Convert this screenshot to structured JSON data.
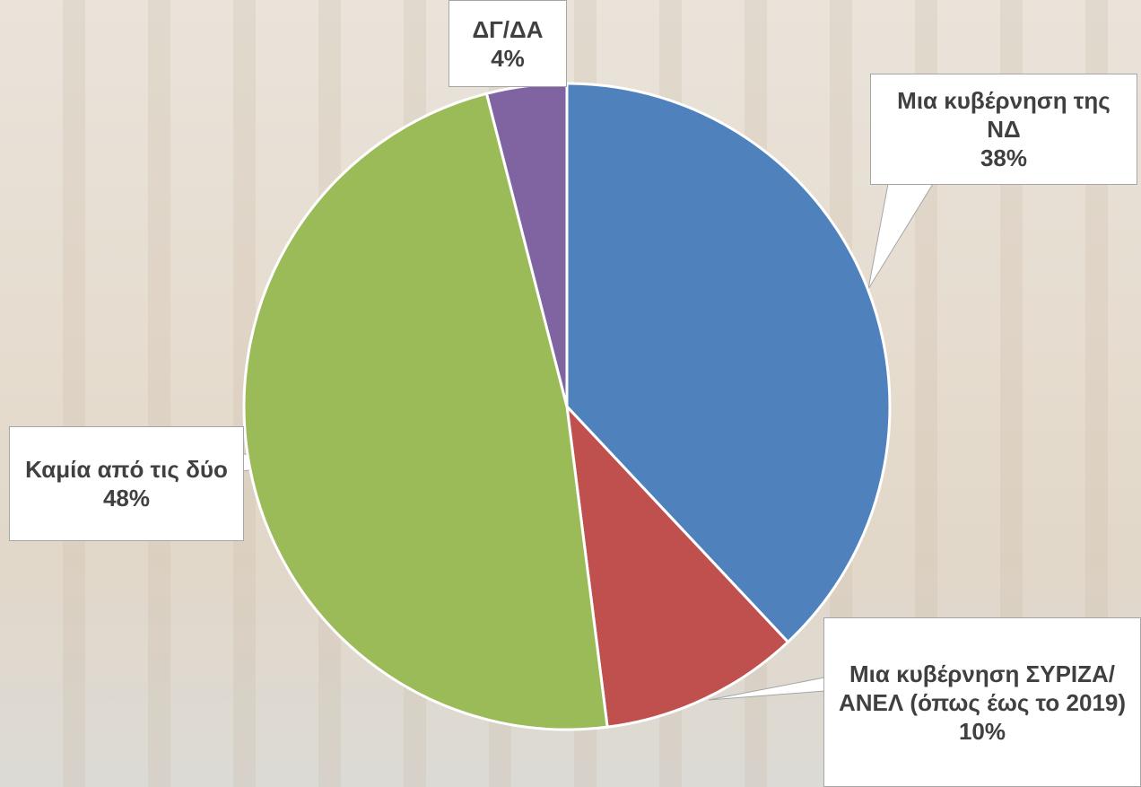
{
  "chart_data": {
    "type": "pie",
    "categories": [
      "Μια κυβέρνηση της ΝΔ",
      "Μια κυβέρνηση ΣΥΡΙΖΑ/ΑΝΕΛ (όπως έως το 2019)",
      "Καμία από τις δύο",
      "ΔΓ/ΔΑ"
    ],
    "values": [
      38,
      10,
      48,
      4
    ],
    "value_labels": [
      "38%",
      "10%",
      "48%",
      "4%"
    ],
    "colors": [
      "#4f81bd",
      "#c0504d",
      "#9bbb59",
      "#8064a2"
    ]
  }
}
